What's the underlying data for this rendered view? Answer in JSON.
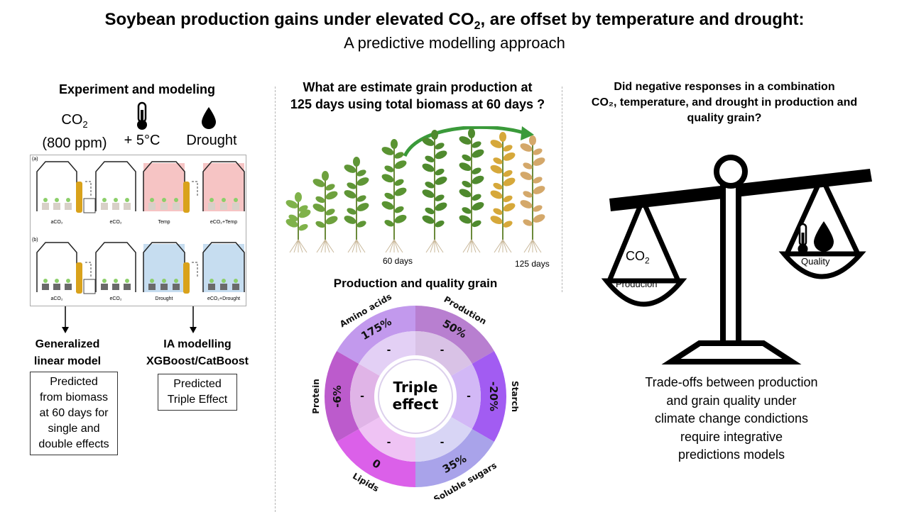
{
  "title": {
    "prefix": "Soybean production gains under elevated CO",
    "sub": "2",
    "suffix": ", are offset by temperature and drought:"
  },
  "subtitle": "A predictive modelling approach",
  "left": {
    "heading": "Experiment and modeling",
    "co2": {
      "prefix": "CO",
      "sub": "2",
      "line2": "(800 ppm)"
    },
    "temp": "+ 5°C",
    "drought": "Drought",
    "chamber_panels": {
      "a": {
        "tag": "(a)",
        "labels": [
          "aCO₂",
          "eCO₂",
          "Temp",
          "eCO₂+Temp"
        ]
      },
      "b": {
        "tag": "(b)",
        "labels": [
          "aCO₂",
          "eCO₂",
          "Drought",
          "eCO₂+Drought"
        ]
      }
    },
    "glm": {
      "line1": "Generalized",
      "line2": "linear model"
    },
    "glm_box": [
      "Predicted",
      "from biomass",
      "at 60 days for",
      "single and",
      "double effects"
    ],
    "ia": {
      "line1": "IA modelling",
      "line2": "XGBoost/CatBoost"
    },
    "ia_box": [
      "Predicted",
      "Triple Effect"
    ]
  },
  "middle": {
    "question": [
      "What are estimate grain production at",
      "125 days using total biomass at 60 days ?"
    ],
    "day60": "60 days",
    "day125": "125 days",
    "section": "Production and quality grain",
    "center": [
      "Triple",
      "effect"
    ],
    "segments": [
      {
        "name": "Prodution",
        "value": "50%",
        "color": "#b87fd0",
        "inner": "#d9c2e6"
      },
      {
        "name": "Starch",
        "value": "-20%",
        "color": "#a25cf2",
        "inner": "#d2b8f6"
      },
      {
        "name": "Soluble sugars",
        "value": "35%",
        "color": "#a9a3ea",
        "inner": "#d8d5f5"
      },
      {
        "name": "Lipids",
        "value": "0",
        "color": "#db60e9",
        "inner": "#efc3f4"
      },
      {
        "name": "Protein",
        "value": "-6%",
        "color": "#bc5bcc",
        "inner": "#e0b4e7"
      },
      {
        "name": "Amino acids",
        "value": "175%",
        "color": "#c299ed",
        "inner": "#e3d0f5"
      }
    ],
    "inner_marks": [
      "-",
      "-",
      "-",
      "-",
      "-",
      "-"
    ]
  },
  "right": {
    "question": [
      "Did negative responses in a combination",
      "CO₂, temperature, and drought in production and",
      "quality grain?"
    ],
    "left_pan": {
      "co": "CO",
      "sub": "2",
      "label": "Producion"
    },
    "right_pan": {
      "label": "Quality"
    },
    "conclusion": [
      "Trade-offs between production",
      "and grain quality under",
      "climate change condictions",
      "require integrative",
      "predictions models"
    ]
  }
}
